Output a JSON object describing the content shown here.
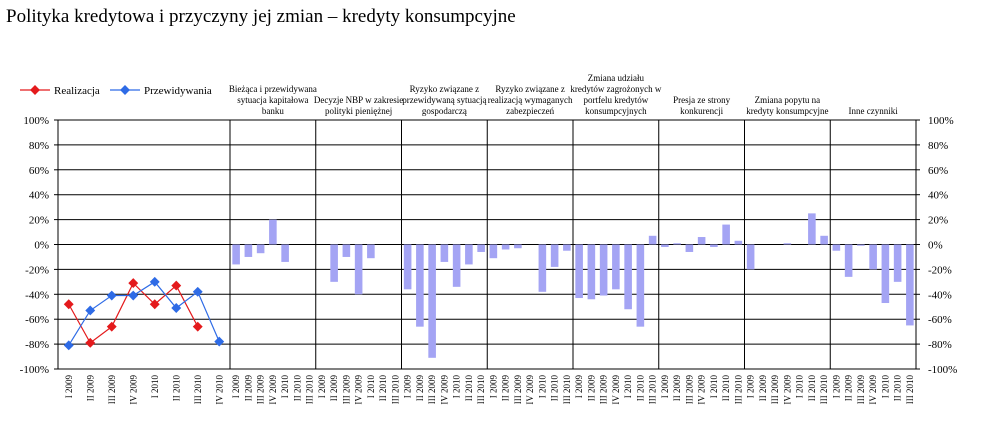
{
  "title": "Polityka kredytowa i przyczyny jej zmian – kredyty konsumpcyjne",
  "chart_data": {
    "type": "line+bar",
    "ylim": [
      -100,
      100
    ],
    "yticks": [
      "100%",
      "80%",
      "60%",
      "40%",
      "20%",
      "0%",
      "-20%",
      "-40%",
      "-60%",
      "-80%",
      "-100%"
    ],
    "yticks_right": [
      "100%",
      "80%",
      "60%",
      "40%",
      "20%",
      "0%",
      "-20%",
      "-40%",
      "-60%",
      "-80%",
      "-100%"
    ],
    "colors": {
      "realizacja": "#e41a1c",
      "przewidywania": "#2e6be6",
      "bars": "#a4a4f4"
    },
    "legend": [
      {
        "name": "Realizacja"
      },
      {
        "name": "Przewidywania"
      }
    ],
    "line_categories": [
      "I 2009",
      "II 2009",
      "III 2009",
      "IV 2009",
      "I 2010",
      "II 2010",
      "III 2010",
      "IV 2010"
    ],
    "line_series": [
      {
        "name": "Realizacja",
        "values": [
          -48,
          -79,
          -66,
          -31,
          -48,
          -33,
          -66,
          null
        ]
      },
      {
        "name": "Przewidywania",
        "values": [
          -81,
          -53,
          -41,
          -41,
          -30,
          -51,
          -38,
          -78
        ]
      }
    ],
    "bar_categories": [
      "I 2009",
      "II 2009",
      "III 2009",
      "IV 2009",
      "I 2010",
      "II 2010",
      "III 2010"
    ],
    "panels": [
      {
        "title": "Bieżąca i przewidywana sytuacja kapitałowa banku",
        "values": [
          -16,
          -10,
          -7,
          20,
          -14,
          0,
          0
        ]
      },
      {
        "title": "Decyzje NBP w zakresie polityki pieniężnej",
        "values": [
          0,
          -30,
          -10,
          -40,
          -11,
          0,
          0
        ]
      },
      {
        "title": "Ryzyko związane z przewidywaną sytuacją gospodarczą",
        "values": [
          -36,
          -66,
          -91,
          -14,
          -34,
          -16,
          -6
        ]
      },
      {
        "title": "Ryzyko związane z realizacją wymaganych zabezpieczeń",
        "values": [
          -11,
          -4,
          -3,
          0,
          -38,
          -18,
          -5
        ]
      },
      {
        "title": "Zmiana udziału kredytów zagrożonych w portfelu kredytów konsumpcyjnych",
        "values": [
          -43,
          -44,
          -41,
          -36,
          -52,
          -66,
          7
        ]
      },
      {
        "title": "Presja ze strony konkurencji",
        "values": [
          -2,
          1,
          -6,
          6,
          -2,
          16,
          3
        ]
      },
      {
        "title": "Zmiana popytu na kredyty konsumpcyjne",
        "values": [
          -20,
          0,
          0,
          1,
          0,
          25,
          7
        ]
      },
      {
        "title": "Inne czynniki",
        "values": [
          -5,
          -26,
          -1,
          -20,
          -47,
          -30,
          -65
        ]
      }
    ]
  }
}
